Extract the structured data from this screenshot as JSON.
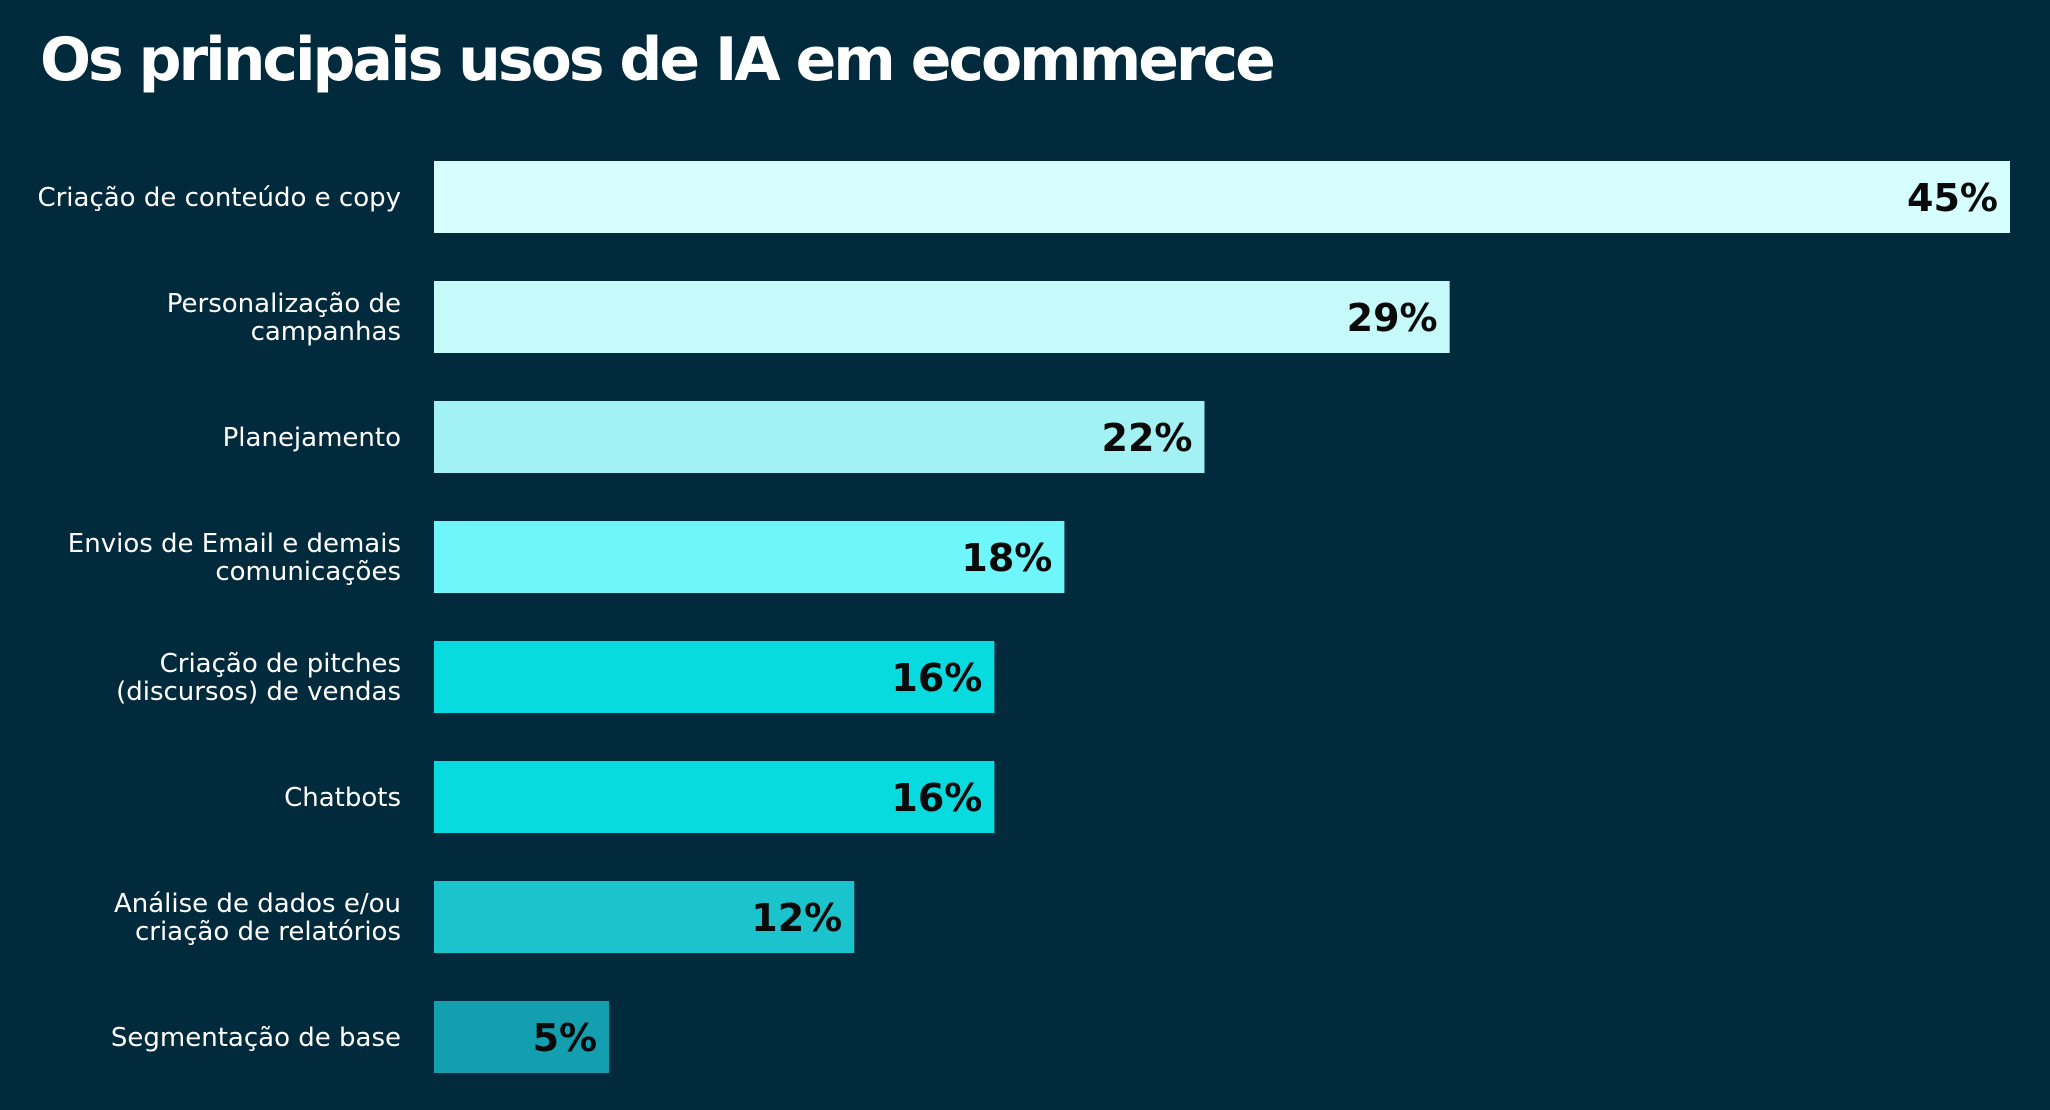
{
  "chart_data": {
    "type": "bar",
    "orientation": "horizontal",
    "title": "Os principais usos de IA em ecommerce",
    "categories": [
      [
        "Criação de conteúdo e copy"
      ],
      [
        "Personalização de",
        "campanhas"
      ],
      [
        "Planejamento"
      ],
      [
        "Envios de Email e demais",
        "comunicações"
      ],
      [
        "Criação de pitches",
        "(discursos) de vendas"
      ],
      [
        "Chatbots"
      ],
      [
        "Análise de dados e/ou",
        "criação de relatórios"
      ],
      [
        "Segmentação de base"
      ]
    ],
    "values": [
      45,
      29,
      22,
      18,
      16,
      16,
      12,
      5
    ],
    "value_labels": [
      "45%",
      "29%",
      "22%",
      "18%",
      "16%",
      "16%",
      "12%",
      "5%"
    ],
    "bar_colors": [
      "#d7fefe",
      "#c6fafa",
      "#a2f2f4",
      "#6ef6fb",
      "#08dbe0",
      "#08dbe0",
      "#1bc3cc",
      "#149fb1"
    ],
    "background_color": "#022a3d",
    "xlim": [
      0,
      45
    ],
    "grid": false,
    "legend": "none"
  }
}
